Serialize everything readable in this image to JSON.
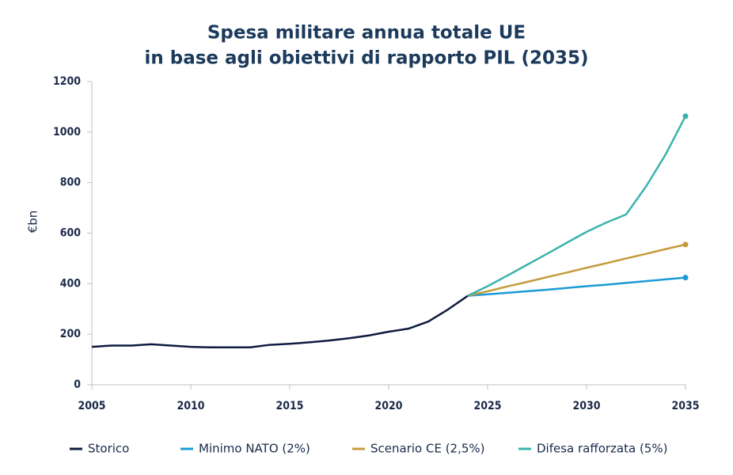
{
  "chart_data": {
    "type": "line",
    "title": [
      "Spesa militare annua totale UE",
      "in base agli obiettivi di rapporto PIL (2035)"
    ],
    "y_label": "€bn",
    "x": [
      2005,
      2006,
      2007,
      2008,
      2009,
      2010,
      2011,
      2012,
      2013,
      2014,
      2015,
      2016,
      2017,
      2018,
      2019,
      2020,
      2021,
      2022,
      2023,
      2024,
      2025,
      2026,
      2027,
      2028,
      2029,
      2030,
      2031,
      2032,
      2033,
      2034,
      2035
    ],
    "xlim": [
      2005,
      2035
    ],
    "xticks": [
      2005,
      2010,
      2015,
      2020,
      2025,
      2030,
      2035
    ],
    "ylim": [
      0,
      1200
    ],
    "yticks": [
      0,
      200,
      400,
      600,
      800,
      1000,
      1200
    ],
    "grid": false,
    "legend": "bottom",
    "series": [
      {
        "name": "Storico",
        "color": "#0d1b3e",
        "end_marker": false,
        "values": [
          150,
          155,
          155,
          160,
          155,
          150,
          148,
          148,
          148,
          158,
          162,
          168,
          175,
          184,
          195,
          210,
          222,
          250,
          298,
          352,
          null,
          null,
          null,
          null,
          null,
          null,
          null,
          null,
          null,
          null,
          null
        ]
      },
      {
        "name": "Minimo NATO (2%)",
        "color": "#1a9ad6",
        "end_marker": true,
        "values": [
          null,
          null,
          null,
          null,
          null,
          null,
          null,
          null,
          null,
          null,
          null,
          null,
          null,
          null,
          null,
          null,
          null,
          null,
          null,
          352,
          358,
          364,
          370,
          376,
          383,
          390,
          396,
          403,
          410,
          417,
          424
        ]
      },
      {
        "name": "Scenario CE (2,5%)",
        "color": "#c49a3c",
        "end_marker": true,
        "values": [
          null,
          null,
          null,
          null,
          null,
          null,
          null,
          null,
          null,
          null,
          null,
          null,
          null,
          null,
          null,
          null,
          null,
          null,
          null,
          352,
          370,
          389,
          407,
          426,
          444,
          463,
          481,
          500,
          518,
          537,
          555
        ]
      },
      {
        "name": "Difesa rafforzata (5%)",
        "color": "#3bb3ad",
        "end_marker": true,
        "values": [
          null,
          null,
          null,
          null,
          null,
          null,
          null,
          null,
          null,
          null,
          null,
          null,
          null,
          null,
          null,
          null,
          null,
          null,
          null,
          352,
          390,
          432,
          475,
          518,
          562,
          605,
          642,
          674,
          784,
          912,
          1063
        ]
      }
    ]
  }
}
